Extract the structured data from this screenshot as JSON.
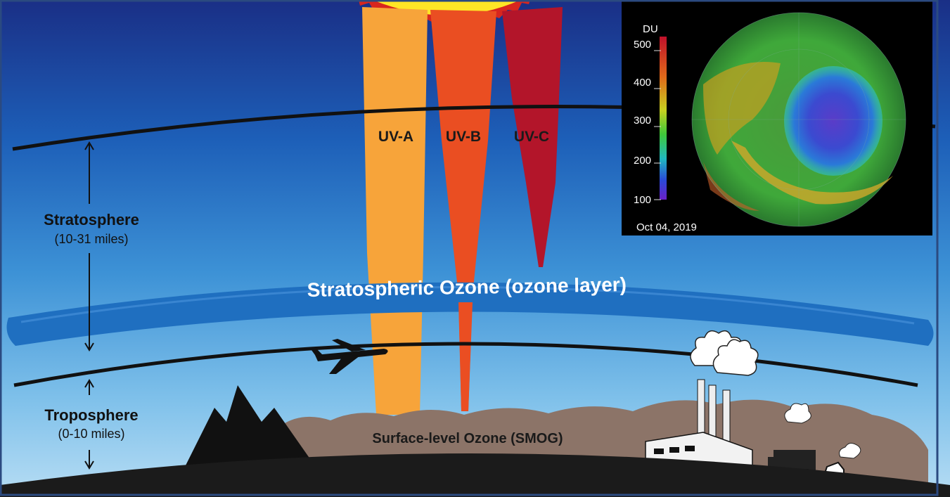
{
  "uv": {
    "a": "UV-A",
    "b": "UV-B",
    "c": "UV-C"
  },
  "layers": {
    "stratosphere": "Stratosphere",
    "stratosphere_range": "(10-31 miles)",
    "troposphere": "Troposphere",
    "troposphere_range": "(0-10 miles)",
    "ozone_layer": "Stratospheric Ozone (ozone layer)",
    "smog": "Surface-level Ozone (SMOG)"
  },
  "inset": {
    "unit": "DU",
    "ticks": [
      "500",
      "400",
      "300",
      "200",
      "100"
    ],
    "date": "Oct 04, 2019"
  },
  "colors": {
    "uv_a": "#f7a43a",
    "uv_b": "#ea4e22",
    "uv_c": "#b3152a",
    "ozone_band": "#1f6fc0",
    "smog": "#8c7468",
    "ground": "#1b1b1b",
    "frame": "#2b4a80"
  }
}
